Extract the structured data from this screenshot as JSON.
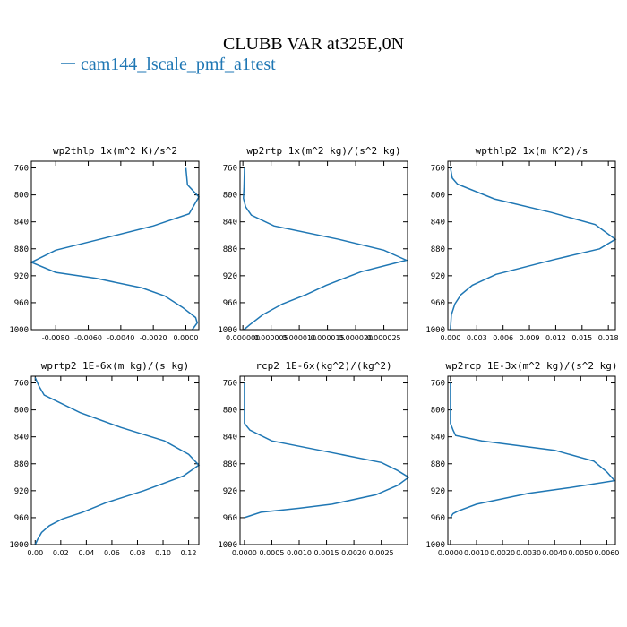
{
  "figure": {
    "title": "CLUBB VAR at325E,0N",
    "legend_label": "cam144_lscale_pmf_a1test",
    "legend_color": "#1f77b4"
  },
  "chart_data": [
    {
      "type": "line",
      "title": "wp2thlp  1x(m^2 K)/s^2",
      "xlim": [
        -0.0095,
        0.0008
      ],
      "ylim": [
        1000,
        750
      ],
      "xticks": [
        -0.008,
        -0.006,
        -0.004,
        -0.002,
        0.0
      ],
      "xtick_labels": [
        "-0.0080",
        "-0.0060",
        "-0.0040",
        "-0.0020",
        "0.0000"
      ],
      "yticks": [
        760,
        800,
        840,
        880,
        920,
        960,
        1000
      ],
      "series": [
        {
          "x": [
            0.0,
            0.0001,
            0.0008,
            0.0002,
            -0.002,
            -0.0053,
            -0.008,
            -0.0095,
            -0.008,
            -0.0055,
            -0.0027,
            -0.0013,
            -0.0002,
            0.0006,
            0.0007,
            0.0004
          ],
          "y": [
            760,
            785,
            803,
            828,
            846,
            866,
            882,
            900,
            915,
            924,
            938,
            950,
            967,
            982,
            990,
            1000
          ]
        }
      ]
    },
    {
      "type": "line",
      "title": "wp2rtp  1x(m^2 kg)/(s^2 kg)",
      "xlim": [
        -5e-07,
        2.92e-05
      ],
      "ylim": [
        1000,
        750
      ],
      "xticks": [
        0.0,
        5e-06,
        1e-05,
        1.5e-05,
        2e-05,
        2.5e-05
      ],
      "xtick_labels": [
        "0.000000",
        "0.000005",
        "0.000010",
        "0.000015",
        "0.000020",
        "0.000025"
      ],
      "yticks": [
        760,
        800,
        840,
        880,
        920,
        960,
        1000
      ],
      "series": [
        {
          "x": [
            3e-07,
            2e-07,
            1e-07,
            5e-07,
            1.5e-06,
            5.5e-06,
            1.7e-05,
            2.5e-05,
            2.9e-05,
            2.1e-05,
            1.48e-05,
            1.12e-05,
            7e-06,
            3.5e-06,
            1.2e-06,
            2e-07
          ],
          "y": [
            760,
            790,
            805,
            818,
            830,
            846,
            866,
            882,
            897,
            914,
            934,
            948,
            962,
            978,
            993,
            1000
          ]
        }
      ]
    },
    {
      "type": "line",
      "title": "wpthlp2  1x(m K^2)/s",
      "xlim": [
        -0.0003,
        0.0188
      ],
      "ylim": [
        1000,
        750
      ],
      "xticks": [
        0.0,
        0.003,
        0.006,
        0.009,
        0.012,
        0.015,
        0.018
      ],
      "xtick_labels": [
        "0.000",
        "0.003",
        "0.006",
        "0.009",
        "0.012",
        "0.015",
        "0.018"
      ],
      "yticks": [
        760,
        800,
        840,
        880,
        920,
        960,
        1000
      ],
      "series": [
        {
          "x": [
            0.0,
            0.0002,
            0.0008,
            0.005,
            0.0115,
            0.0165,
            0.0188,
            0.017,
            0.0118,
            0.0052,
            0.0025,
            0.0012,
            0.0005,
            0.0001,
            0.0
          ],
          "y": [
            760,
            775,
            784,
            806,
            826,
            844,
            866,
            880,
            896,
            918,
            934,
            948,
            962,
            978,
            1000
          ]
        }
      ]
    },
    {
      "type": "line",
      "title": "wprtp2  1E-6x(m kg)/(s kg)",
      "xlim": [
        -0.003,
        0.128
      ],
      "ylim": [
        1000,
        750
      ],
      "xticks": [
        0.0,
        0.02,
        0.04,
        0.06,
        0.08,
        0.1,
        0.12
      ],
      "xtick_labels": [
        "0.00",
        "0.02",
        "0.04",
        "0.06",
        "0.08",
        "0.10",
        "0.12"
      ],
      "yticks": [
        760,
        800,
        840,
        880,
        920,
        960,
        1000
      ],
      "series": [
        {
          "x": [
            0.0,
            0.003,
            0.007,
            0.035,
            0.067,
            0.101,
            0.12,
            0.128,
            0.116,
            0.085,
            0.055,
            0.037,
            0.021,
            0.011,
            0.005,
            0.002,
            0.0
          ],
          "y": [
            752,
            765,
            778,
            804,
            826,
            846,
            866,
            882,
            898,
            920,
            938,
            952,
            962,
            972,
            982,
            992,
            1000
          ]
        }
      ]
    },
    {
      "type": "line",
      "title": "rcp2  1E-6x(kg^2)/(kg^2)",
      "xlim": [
        -8e-05,
        0.00298
      ],
      "ylim": [
        1000,
        750
      ],
      "xticks": [
        0.0,
        0.0005,
        0.001,
        0.0015,
        0.002,
        0.0025
      ],
      "xtick_labels": [
        "0.0000",
        "0.0005",
        "0.0010",
        "0.0015",
        "0.0020",
        "0.0025"
      ],
      "yticks": [
        760,
        800,
        840,
        880,
        920,
        960,
        1000
      ],
      "series": [
        {
          "x": [
            0.0,
            0.0,
            0.0001,
            0.0005,
            0.0015,
            0.0025,
            0.0028,
            0.003,
            0.0028,
            0.0024,
            0.0016,
            0.001,
            0.0003,
            0.0
          ],
          "y": [
            760,
            820,
            830,
            846,
            862,
            878,
            890,
            900,
            912,
            926,
            940,
            946,
            952,
            960
          ]
        }
      ]
    },
    {
      "type": "line",
      "title": "wp2rcp  1E-3x(m^2 kg)/(s^2 kg)",
      "xlim": [
        -0.0001,
        0.00633
      ],
      "ylim": [
        1000,
        750
      ],
      "xticks": [
        0.0,
        0.001,
        0.002,
        0.003,
        0.004,
        0.005,
        0.006
      ],
      "xtick_labels": [
        "0.0000",
        "0.0010",
        "0.0020",
        "0.0030",
        "0.0040",
        "0.0050",
        "0.0060"
      ],
      "yticks": [
        760,
        800,
        840,
        880,
        920,
        960,
        1000
      ],
      "series": [
        {
          "x": [
            0.0,
            0.0,
            0.0001,
            0.0002,
            0.0012,
            0.004,
            0.0055,
            0.006,
            0.0063,
            0.0045,
            0.003,
            0.001,
            0.0003,
            0.0001,
            0.0
          ],
          "y": [
            760,
            820,
            830,
            838,
            846,
            860,
            876,
            892,
            905,
            916,
            924,
            940,
            950,
            954,
            960
          ]
        }
      ]
    }
  ]
}
